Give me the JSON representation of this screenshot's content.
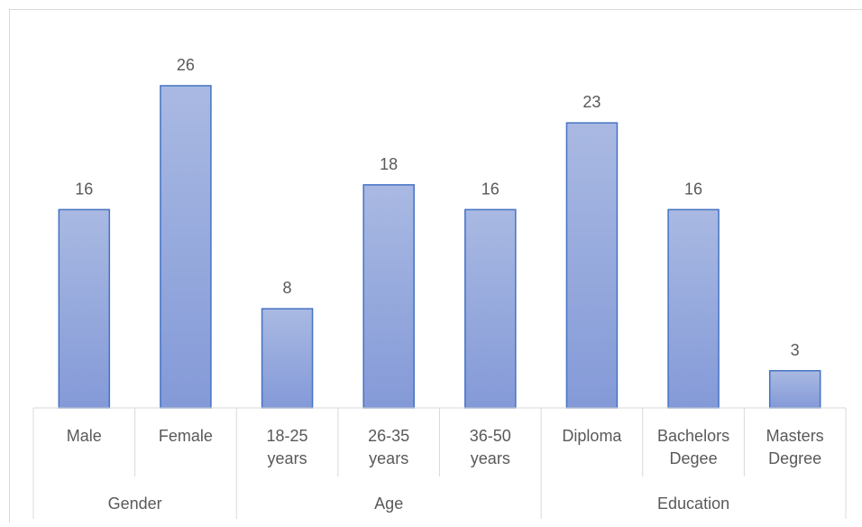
{
  "chart_data": {
    "type": "bar",
    "title": "",
    "xlabel": "",
    "ylabel": "",
    "ylim": [
      0,
      30
    ],
    "grid": false,
    "legend": "none",
    "bar_color": "#8fa4d8",
    "bar_border_color": "#4472c4",
    "label_color": "#595959",
    "axis_line_color": "#d9d9d9",
    "categories": [
      {
        "label": "Male",
        "group": "Gender"
      },
      {
        "label": "Female",
        "group": "Gender"
      },
      {
        "label": "18-25 years",
        "group": "Age"
      },
      {
        "label": "26-35 years",
        "group": "Age"
      },
      {
        "label": "36-50 years",
        "group": "Age"
      },
      {
        "label": "Diploma",
        "group": "Education"
      },
      {
        "label": "Bachelors Degee",
        "group": "Education"
      },
      {
        "label": "Masters Degree",
        "group": "Education"
      }
    ],
    "values": [
      16,
      26,
      8,
      18,
      16,
      23,
      16,
      3
    ],
    "groups": [
      "Gender",
      "Age",
      "Education"
    ]
  }
}
